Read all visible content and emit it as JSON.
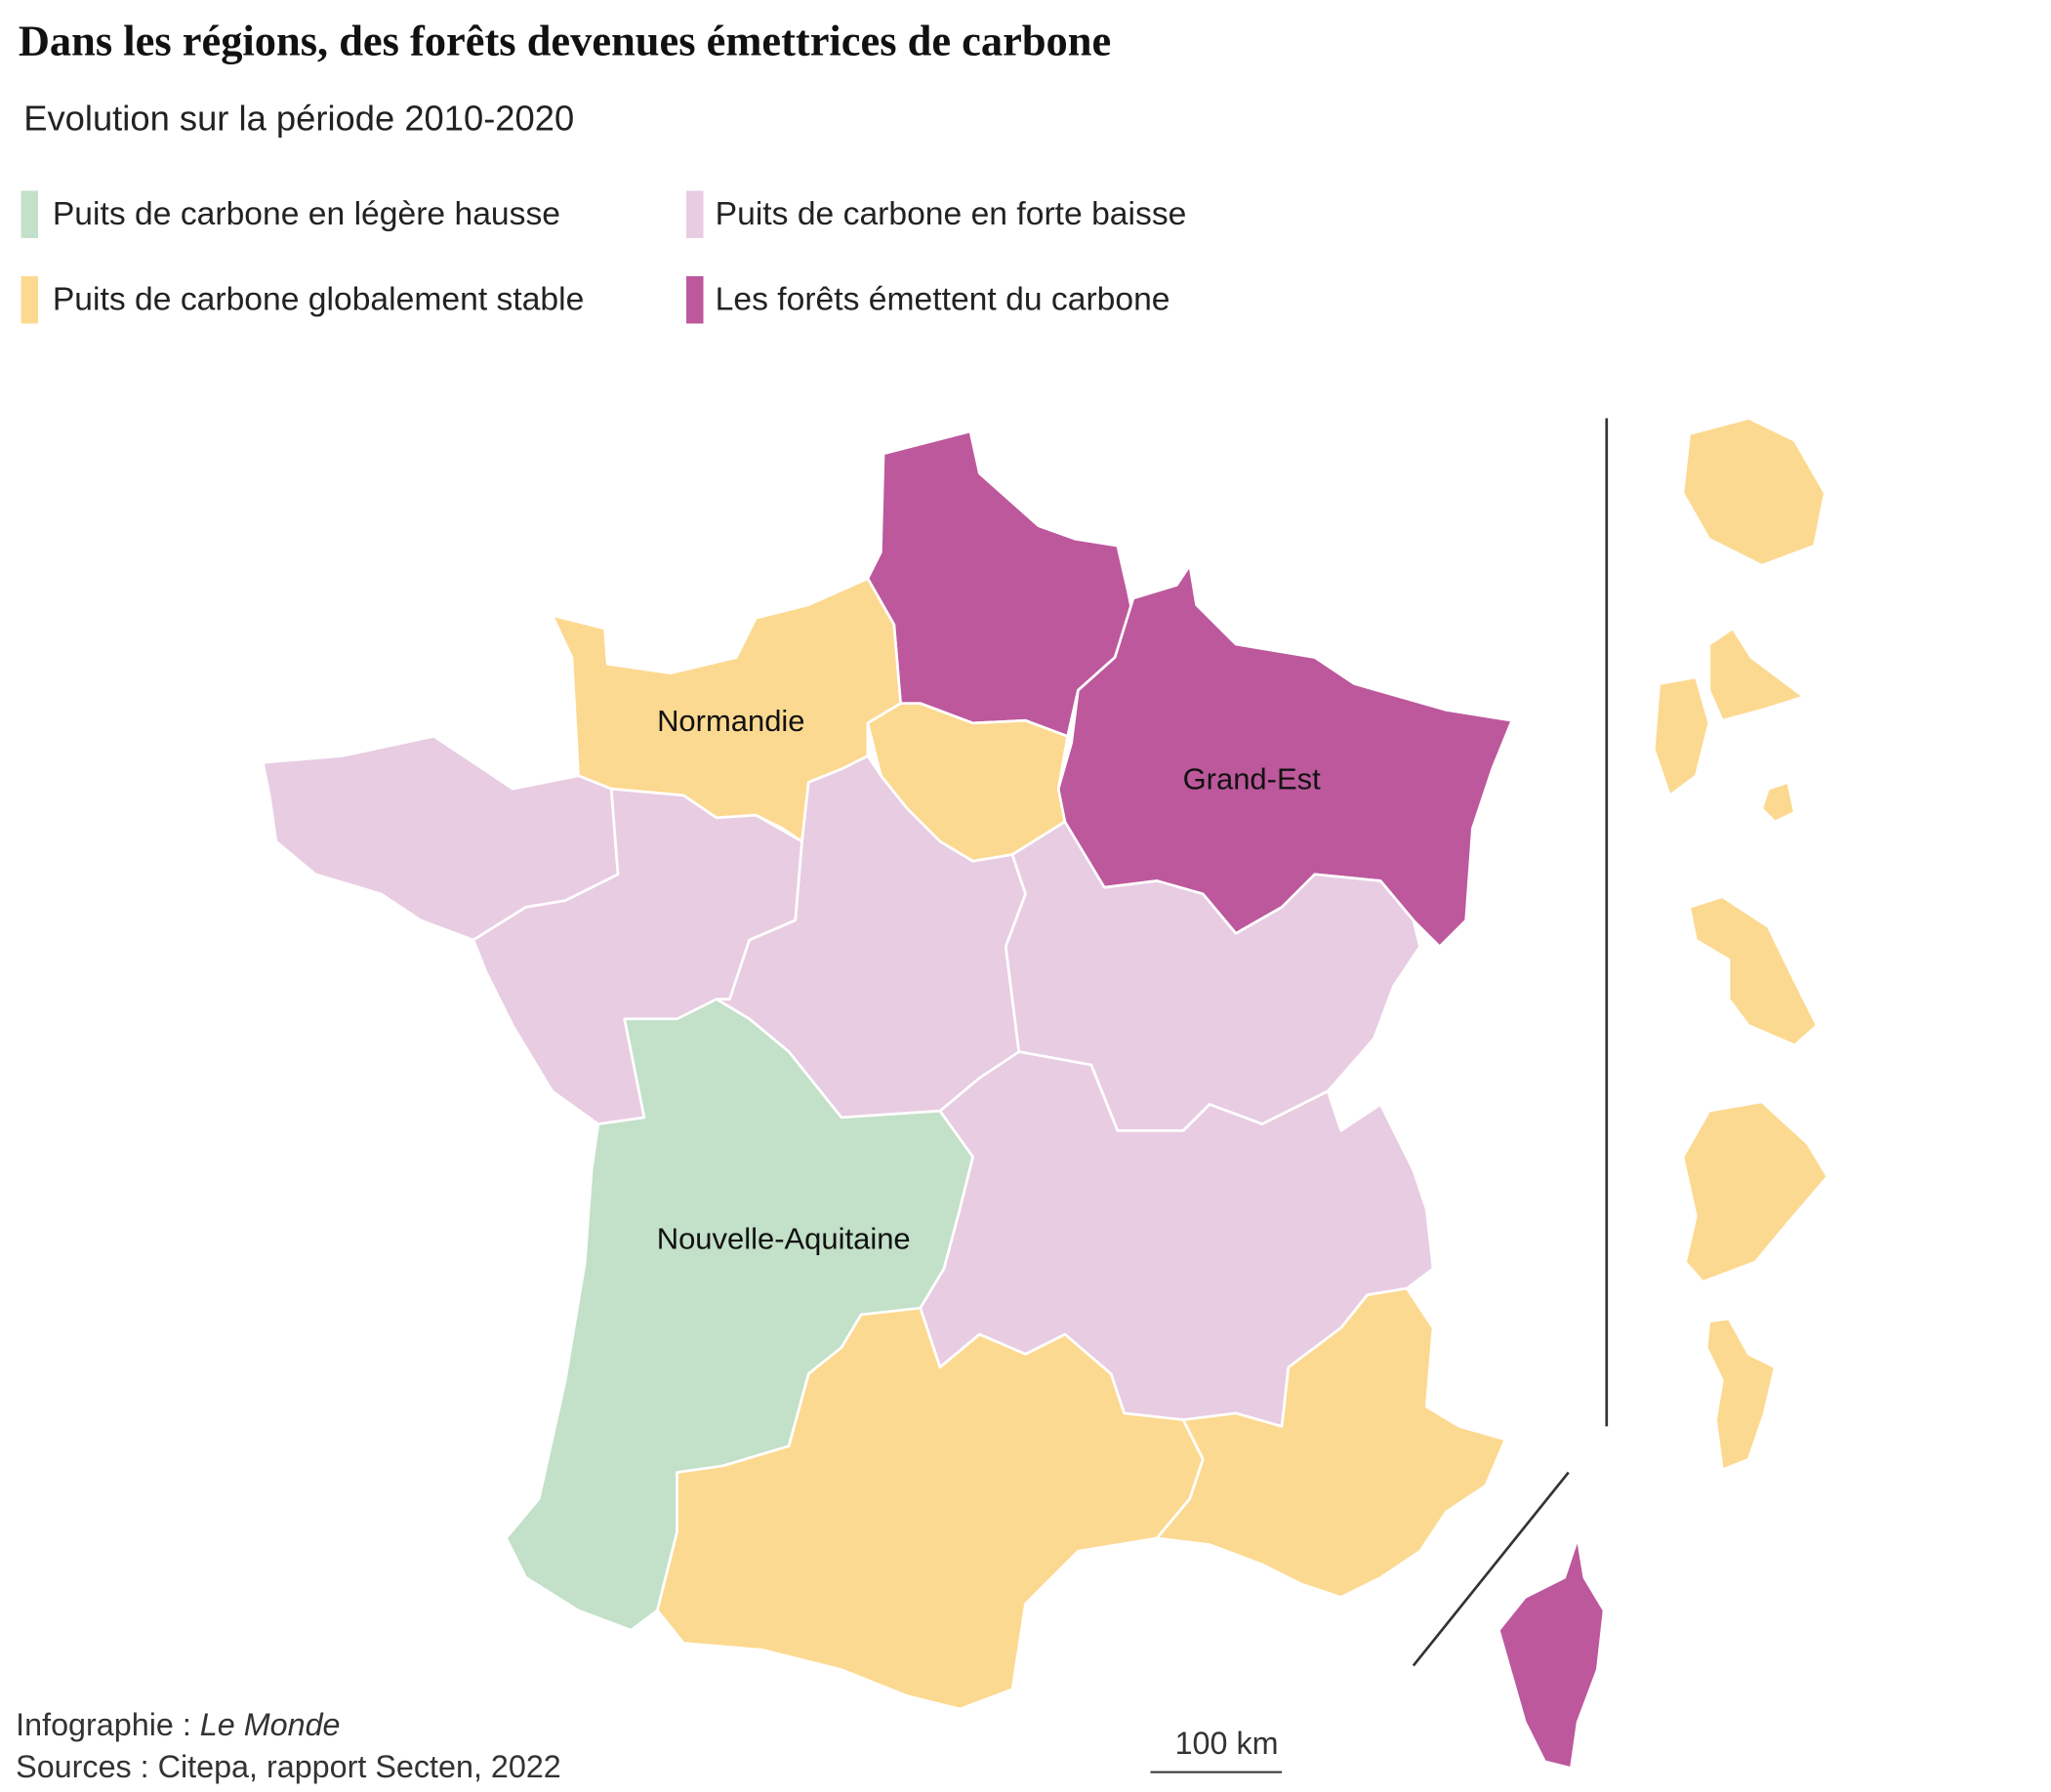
{
  "header": {
    "title": "Dans les régions, des forêts devenues émettrices de carbone",
    "subtitle": "Evolution sur la période 2010-2020"
  },
  "legend": {
    "items": [
      {
        "label": "Puits de carbone en légère hausse",
        "color": "#c3e0c8"
      },
      {
        "label": "Puits de carbone globalement stable",
        "color": "#fcd990"
      },
      {
        "label": "Puits de carbone en forte baisse",
        "color": "#e8cce2"
      },
      {
        "label": "Les forêts émettent du carbone",
        "color": "#bd589c"
      }
    ]
  },
  "map": {
    "labels": [
      "Normandie",
      "Grand-Est",
      "Nouvelle-Aquitaine"
    ],
    "scale": "100 km"
  },
  "footer": {
    "credit_prefix": "Infographie :",
    "credit_name": "Le Monde",
    "sources": "Sources : Citepa, rapport Secten, 2022"
  }
}
